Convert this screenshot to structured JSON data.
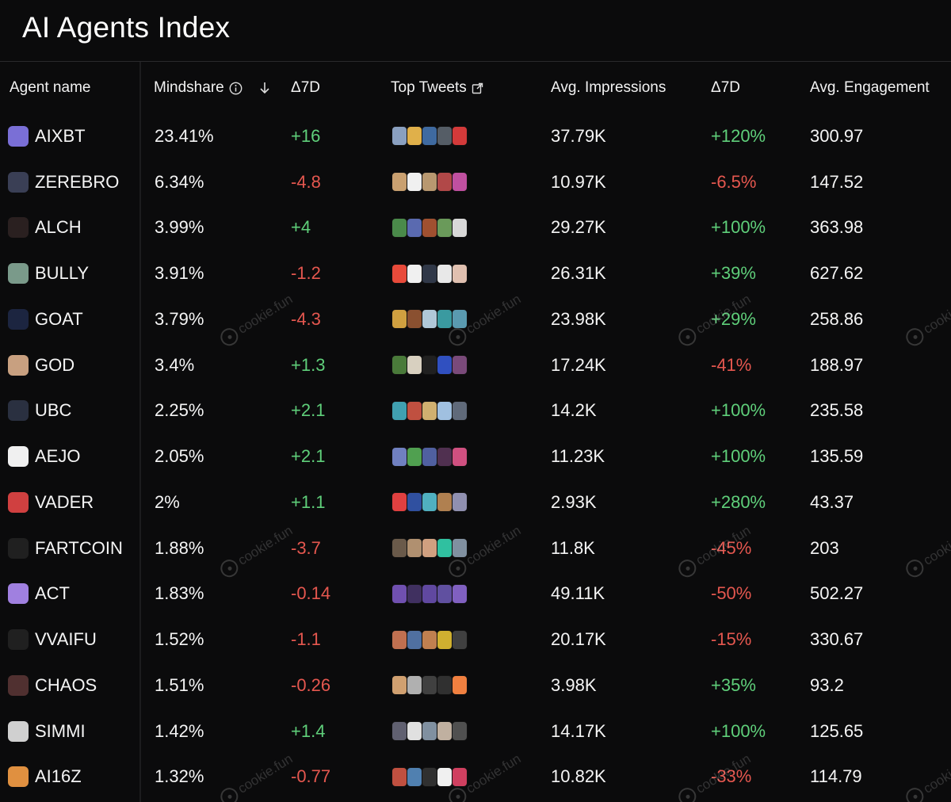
{
  "page": {
    "title": "AI Agents Index"
  },
  "table": {
    "columns": [
      {
        "key": "agent",
        "label": "Agent name",
        "icon": null
      },
      {
        "key": "mindshare",
        "label": "Mindshare",
        "icon": "info-circle-icon",
        "sort": "down-arrow-icon"
      },
      {
        "key": "mindshare_delta",
        "label": "Δ7D",
        "icon": null
      },
      {
        "key": "top_tweets",
        "label": "Top Tweets",
        "icon": "external-link-icon"
      },
      {
        "key": "impressions",
        "label": "Avg. Impressions",
        "icon": null
      },
      {
        "key": "impressions_delta",
        "label": "Δ7D",
        "icon": null
      },
      {
        "key": "engagement",
        "label": "Avg. Engagement",
        "icon": null
      }
    ],
    "rows": [
      {
        "name": "AIXBT",
        "avatar_color": "#7a6fd6",
        "mindshare": "23.41%",
        "delta": "+16",
        "impressions": "37.79K",
        "imp_delta": "+120%",
        "engagement": "300.97",
        "tweet_colors": [
          "#8aa0c0",
          "#e0b04a",
          "#3f6aa0",
          "#555d66",
          "#d33a3a"
        ]
      },
      {
        "name": "ZEREBRO",
        "avatar_color": "#3a3f55",
        "mindshare": "6.34%",
        "delta": "-4.8",
        "impressions": "10.97K",
        "imp_delta": "-6.5%",
        "engagement": "147.52",
        "tweet_colors": [
          "#c9a070",
          "#f0f0f0",
          "#b89870",
          "#b14848",
          "#c050a0"
        ]
      },
      {
        "name": "ALCH",
        "avatar_color": "#2a2020",
        "mindshare": "3.99%",
        "delta": "+4",
        "impressions": "29.27K",
        "imp_delta": "+100%",
        "engagement": "363.98",
        "tweet_colors": [
          "#4a8a4a",
          "#5a6ab0",
          "#a05030",
          "#6a9a5a",
          "#d8d8d8"
        ]
      },
      {
        "name": "BULLY",
        "avatar_color": "#7a9a8a",
        "mindshare": "3.91%",
        "delta": "-1.2",
        "impressions": "26.31K",
        "imp_delta": "+39%",
        "engagement": "627.62",
        "tweet_colors": [
          "#e84a3a",
          "#f0f0f0",
          "#303848",
          "#e8e8e8",
          "#e0c0b0"
        ]
      },
      {
        "name": "GOAT",
        "avatar_color": "#1c2540",
        "mindshare": "3.79%",
        "delta": "-4.3",
        "impressions": "23.98K",
        "imp_delta": "+29%",
        "engagement": "258.86",
        "tweet_colors": [
          "#d0a040",
          "#8a5030",
          "#b0c8d8",
          "#3a9aa0",
          "#5a9ab0"
        ]
      },
      {
        "name": "GOD",
        "avatar_color": "#c8a080",
        "mindshare": "3.4%",
        "delta": "+1.3",
        "impressions": "17.24K",
        "imp_delta": "-41%",
        "engagement": "188.97",
        "tweet_colors": [
          "#4a7a3a",
          "#d8d0c0",
          "#202020",
          "#3050c0",
          "#7a4a7a"
        ]
      },
      {
        "name": "UBC",
        "avatar_color": "#2a3040",
        "mindshare": "2.25%",
        "delta": "+2.1",
        "impressions": "14.2K",
        "imp_delta": "+100%",
        "engagement": "235.58",
        "tweet_colors": [
          "#40a0b0",
          "#c05040",
          "#d0b070",
          "#a0c0e0",
          "#606a7a"
        ]
      },
      {
        "name": "AEJO",
        "avatar_color": "#f0f0f0",
        "mindshare": "2.05%",
        "delta": "+2.1",
        "impressions": "11.23K",
        "imp_delta": "+100%",
        "engagement": "135.59",
        "tweet_colors": [
          "#7080c0",
          "#50a050",
          "#5060a0",
          "#503050",
          "#d05080"
        ]
      },
      {
        "name": "VADER",
        "avatar_color": "#d04040",
        "mindshare": "2%",
        "delta": "+1.1",
        "impressions": "2.93K",
        "imp_delta": "+280%",
        "engagement": "43.37",
        "tweet_colors": [
          "#e04040",
          "#3050a0",
          "#50b0c0",
          "#b08050",
          "#9090b0"
        ]
      },
      {
        "name": "FARTCOIN",
        "avatar_color": "#202020",
        "mindshare": "1.88%",
        "delta": "-3.7",
        "impressions": "11.8K",
        "imp_delta": "-45%",
        "engagement": "203",
        "tweet_colors": [
          "#6a5a4a",
          "#b09070",
          "#d0a080",
          "#30c0a0",
          "#8090a0"
        ]
      },
      {
        "name": "ACT",
        "avatar_color": "#a080e0",
        "mindshare": "1.83%",
        "delta": "-0.14",
        "impressions": "49.11K",
        "imp_delta": "-50%",
        "engagement": "502.27",
        "tweet_colors": [
          "#7050b0",
          "#403060",
          "#6048a0",
          "#6050a0",
          "#8060c0"
        ]
      },
      {
        "name": "VVAIFU",
        "avatar_color": "#202020",
        "mindshare": "1.52%",
        "delta": "-1.1",
        "impressions": "20.17K",
        "imp_delta": "-15%",
        "engagement": "330.67",
        "tweet_colors": [
          "#c07050",
          "#5070a0",
          "#c08050",
          "#d0b030",
          "#404040"
        ]
      },
      {
        "name": "CHAOS",
        "avatar_color": "#503030",
        "mindshare": "1.51%",
        "delta": "-0.26",
        "impressions": "3.98K",
        "imp_delta": "+35%",
        "engagement": "93.2",
        "tweet_colors": [
          "#d0a070",
          "#b0b0b0",
          "#404040",
          "#303030",
          "#f08040"
        ]
      },
      {
        "name": "SIMMI",
        "avatar_color": "#d0d0d0",
        "mindshare": "1.42%",
        "delta": "+1.4",
        "impressions": "14.17K",
        "imp_delta": "+100%",
        "engagement": "125.65",
        "tweet_colors": [
          "#606070",
          "#e0e0e0",
          "#8090a0",
          "#c0b0a0",
          "#505050"
        ]
      },
      {
        "name": "AI16Z",
        "avatar_color": "#e09040",
        "mindshare": "1.32%",
        "delta": "-0.77",
        "impressions": "10.82K",
        "imp_delta": "-33%",
        "engagement": "114.79",
        "tweet_colors": [
          "#c05040",
          "#5080b0",
          "#303030",
          "#f0f0f0",
          "#d04060"
        ]
      }
    ]
  },
  "watermark": {
    "text": "cookie.fun"
  }
}
